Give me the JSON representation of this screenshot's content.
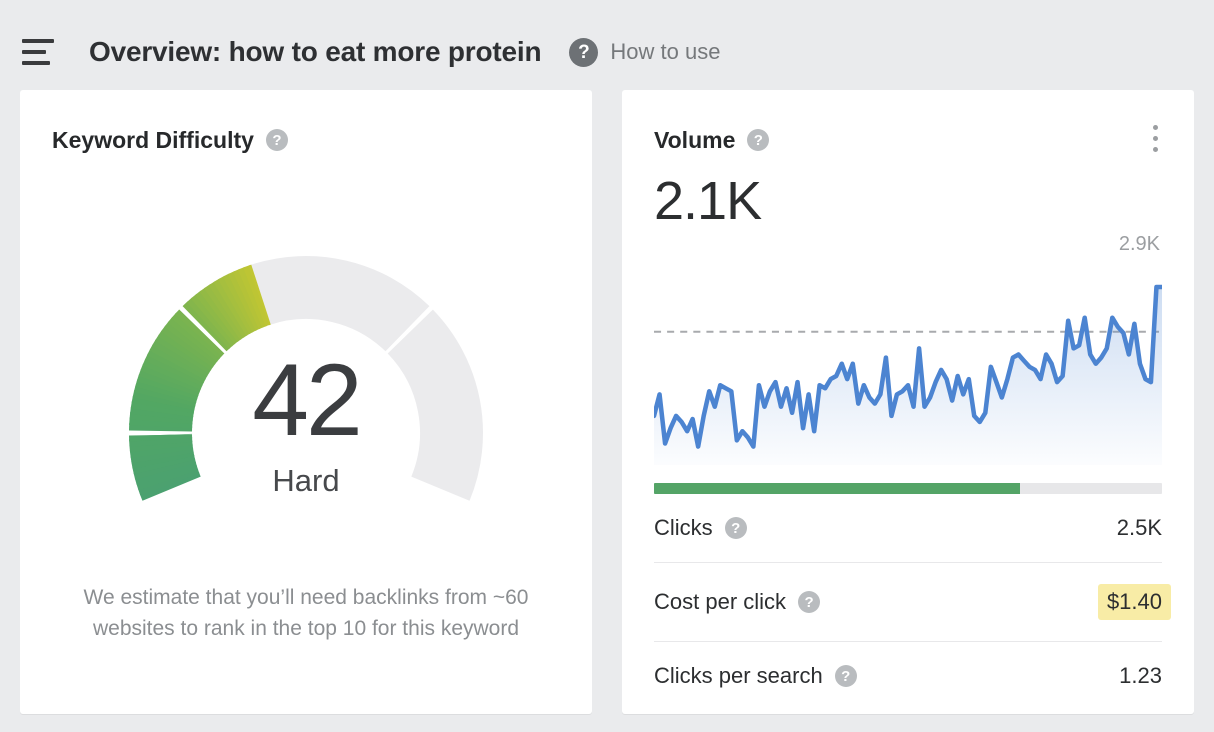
{
  "header": {
    "title": "Overview: how to eat more protein",
    "help_label": "How to use"
  },
  "keyword_difficulty_card": {
    "title": "Keyword Difficulty",
    "score": "42",
    "score_rating": "Hard",
    "description": "We estimate that you’ll need backlinks from ~60 websites to rank in the top 10 for this keyword"
  },
  "volume_card": {
    "title": "Volume",
    "value": "2.1K",
    "peak_label": "2.9K",
    "progress_percent": 72,
    "rows": [
      {
        "label": "Clicks",
        "value": "2.5K",
        "highlighted": false
      },
      {
        "label": "Cost per click",
        "value": "$1.40",
        "highlighted": true
      },
      {
        "label": "Clicks per search",
        "value": "1.23",
        "highlighted": false
      }
    ]
  },
  "colors": {
    "accent_blue": "#4c84d1",
    "green_bar": "#54a467",
    "highlight_yellow": "#f8eca6",
    "gauge_track": "#ebebed",
    "dashed_line": "#a8aaad"
  },
  "chart_data": [
    {
      "type": "gauge",
      "title": "Keyword Difficulty",
      "value": 42,
      "min": 0,
      "max": 100,
      "rating": "Hard",
      "segment_boundaries": [
        10,
        30,
        70
      ],
      "start_angle": 202.5,
      "sweep": 225,
      "color_stops": [
        {
          "v": 0,
          "c": "#4ba170"
        },
        {
          "v": 15,
          "c": "#52a763"
        },
        {
          "v": 30,
          "c": "#7cb44f"
        },
        {
          "v": 42,
          "c": "#c2c632"
        }
      ],
      "track_color": "#ebebed"
    },
    {
      "type": "area",
      "title": "Search volume trend",
      "unit": "K",
      "peak_label": "2.9K",
      "ymax": 2.9,
      "reference_line": 2.17,
      "line_color": "#4c84d1",
      "grid": false,
      "values": [
        0.8,
        1.15,
        0.35,
        0.6,
        0.8,
        0.7,
        0.55,
        0.75,
        0.3,
        0.8,
        1.2,
        0.95,
        1.3,
        1.25,
        1.2,
        0.4,
        0.55,
        0.45,
        0.3,
        1.3,
        0.95,
        1.2,
        1.35,
        0.95,
        1.25,
        0.85,
        1.35,
        0.6,
        1.15,
        0.55,
        1.3,
        1.25,
        1.4,
        1.45,
        1.65,
        1.4,
        1.65,
        1.0,
        1.3,
        1.1,
        1.0,
        1.15,
        1.75,
        0.8,
        1.15,
        1.2,
        1.3,
        0.95,
        1.9,
        0.95,
        1.1,
        1.35,
        1.55,
        1.4,
        1.05,
        1.45,
        1.15,
        1.4,
        0.8,
        0.7,
        0.85,
        1.6,
        1.35,
        1.1,
        1.4,
        1.75,
        1.8,
        1.7,
        1.6,
        1.55,
        1.4,
        1.8,
        1.65,
        1.35,
        1.45,
        2.35,
        1.9,
        1.95,
        2.4,
        1.8,
        1.65,
        1.75,
        1.9,
        2.4,
        2.25,
        2.15,
        1.8,
        2.3,
        1.65,
        1.4,
        1.35,
        2.9,
        2.9
      ]
    }
  ]
}
